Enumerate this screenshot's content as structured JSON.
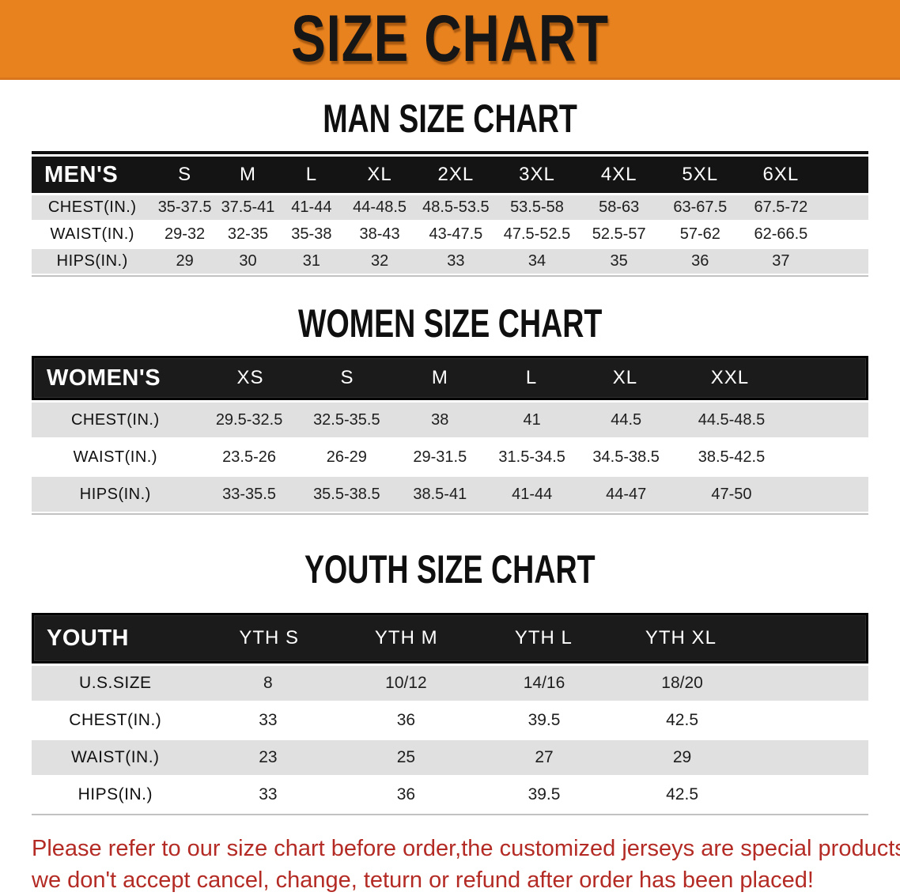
{
  "banner": {
    "title": "SIZE CHART"
  },
  "colors": {
    "banner_orange": "#e8821e",
    "header_bar_black": "#1b1b1b",
    "row_gray": "#e0e0e0",
    "note_red": "#b32b24"
  },
  "sections": [
    {
      "id": "men",
      "heading": "MAN SIZE CHART",
      "table": {
        "header_label": "MEN'S",
        "columns": [
          "S",
          "M",
          "L",
          "XL",
          "2XL",
          "3XL",
          "4XL",
          "5XL",
          "6XL"
        ],
        "rows": [
          {
            "key": "chest",
            "label": "CHEST(IN.)",
            "values": [
              "35-37.5",
              "37.5-41",
              "41-44",
              "44-48.5",
              "48.5-53.5",
              "53.5-58",
              "58-63",
              "63-67.5",
              "67.5-72"
            ]
          },
          {
            "key": "waist",
            "label": "WAIST(IN.)",
            "values": [
              "29-32",
              "32-35",
              "35-38",
              "38-43",
              "43-47.5",
              "47.5-52.5",
              "52.5-57",
              "57-62",
              "62-66.5"
            ]
          },
          {
            "key": "hips",
            "label": "HIPS(IN.)",
            "values": [
              "29",
              "30",
              "31",
              "32",
              "33",
              "34",
              "35",
              "36",
              "37"
            ]
          }
        ]
      }
    },
    {
      "id": "women",
      "heading": "WOMEN SIZE CHART",
      "table": {
        "header_label": "WOMEN'S",
        "columns": [
          "XS",
          "S",
          "M",
          "L",
          "XL",
          "XXL"
        ],
        "rows": [
          {
            "key": "chest",
            "label": "CHEST(IN.)",
            "values": [
              "29.5-32.5",
              "32.5-35.5",
              "38",
              "41",
              "44.5",
              "44.5-48.5"
            ]
          },
          {
            "key": "waist",
            "label": "WAIST(IN.)",
            "values": [
              "23.5-26",
              "26-29",
              "29-31.5",
              "31.5-34.5",
              "34.5-38.5",
              "38.5-42.5"
            ]
          },
          {
            "key": "hips",
            "label": "HIPS(IN.)",
            "values": [
              "33-35.5",
              "35.5-38.5",
              "38.5-41",
              "41-44",
              "44-47",
              "47-50"
            ]
          }
        ]
      }
    },
    {
      "id": "youth",
      "heading": "YOUTH SIZE CHART",
      "table": {
        "header_label": "YOUTH",
        "columns": [
          "YTH S",
          "YTH M",
          "YTH L",
          "YTH XL"
        ],
        "rows": [
          {
            "key": "us-size",
            "label": "U.S.SIZE",
            "values": [
              "8",
              "10/12",
              "14/16",
              "18/20"
            ]
          },
          {
            "key": "chest",
            "label": "CHEST(IN.)",
            "values": [
              "33",
              "36",
              "39.5",
              "42.5"
            ]
          },
          {
            "key": "waist",
            "label": "WAIST(IN.)",
            "values": [
              "23",
              "25",
              "27",
              "29"
            ]
          },
          {
            "key": "hips",
            "label": "HIPS(IN.)",
            "values": [
              "33",
              "36",
              "39.5",
              "42.5"
            ]
          }
        ]
      }
    }
  ],
  "note": {
    "line1": "Please refer to our size chart before order,the customized jerseys are special products,",
    "line2": "we don't accept cancel, change, teturn or refund after order has been placed!"
  }
}
